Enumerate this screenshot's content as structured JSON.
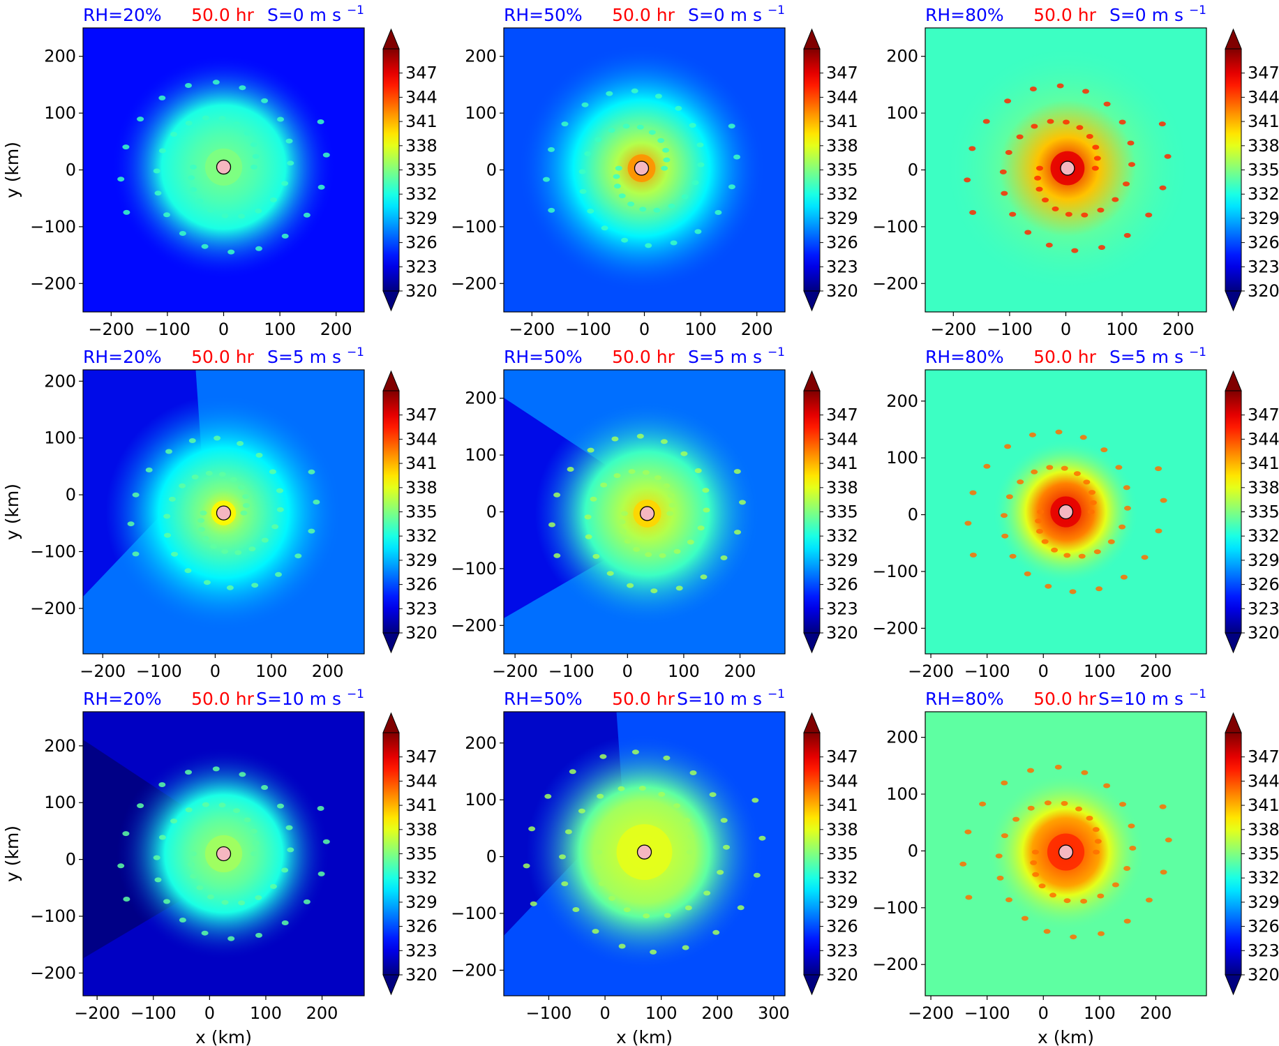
{
  "colors": {
    "title_left": "#0000ff",
    "title_center": "#ff0000",
    "title_right": "#0000ff",
    "center_marker": "#f5b7c0"
  },
  "colorbar": {
    "colormap": "jet",
    "extend": "both",
    "vmin": 320,
    "vmax": 350,
    "ticks": [
      "347",
      "344",
      "341",
      "338",
      "335",
      "332",
      "329",
      "326",
      "323",
      "320"
    ]
  },
  "chart_data": [
    {
      "type": "heatmap",
      "row": 0,
      "col": 0,
      "title_left": "RH=20%",
      "title_center": "50.0 hr",
      "title_right_base": "S=0 m s",
      "title_right_exp": "−1",
      "xlabel": "",
      "ylabel": "y (km)",
      "xticks": [
        "−200",
        "−100",
        "0",
        "100",
        "200"
      ],
      "yticks": [
        "200",
        "100",
        "0",
        "−100",
        "−200"
      ],
      "xlim": [
        -250,
        250
      ],
      "ylim": [
        -250,
        250
      ],
      "center": [
        0,
        5
      ],
      "field": {
        "bg": 324,
        "core": 335,
        "core_r": 60,
        "band": 332,
        "band_r": 200,
        "cells": 333,
        "wedge": null
      }
    },
    {
      "type": "heatmap",
      "row": 0,
      "col": 1,
      "title_left": "RH=50%",
      "title_center": "50.0 hr",
      "title_right_base": "S=0 m s",
      "title_right_exp": "−1",
      "xlabel": "",
      "ylabel": "",
      "xticks": [
        "−200",
        "−100",
        "0",
        "100",
        "200"
      ],
      "yticks": [
        "200",
        "100",
        "0",
        "−100",
        "−200"
      ],
      "xlim": [
        -250,
        250
      ],
      "ylim": [
        -250,
        250
      ],
      "center": [
        -5,
        3
      ],
      "field": {
        "bg": 326,
        "core": 342,
        "core_r": 45,
        "band": 331,
        "band_r": 220,
        "cells": 333,
        "wedge": null
      }
    },
    {
      "type": "heatmap",
      "row": 0,
      "col": 2,
      "title_left": "RH=80%",
      "title_center": "50.0 hr",
      "title_right_base": "S=0 m s",
      "title_right_exp": "−1",
      "xlabel": "",
      "ylabel": "",
      "xticks": [
        "−200",
        "−100",
        "0",
        "100",
        "200"
      ],
      "yticks": [
        "200",
        "100",
        "0",
        "−100",
        "−200"
      ],
      "xlim": [
        -250,
        250
      ],
      "ylim": [
        -250,
        250
      ],
      "center": [
        3,
        3
      ],
      "field": {
        "bg": 333,
        "core": 347,
        "core_r": 55,
        "band": 334,
        "band_r": 220,
        "cells": 345,
        "wedge": null
      }
    },
    {
      "type": "heatmap",
      "row": 1,
      "col": 0,
      "title_left": "RH=20%",
      "title_center": "50.0 hr",
      "title_right_base": "S=5 m s",
      "title_right_exp": "−1",
      "xlabel": "",
      "ylabel": "y (km)",
      "xticks": [
        "−200",
        "−100",
        "0",
        "100",
        "200"
      ],
      "yticks": [
        "200",
        "100",
        "0",
        "−100",
        "−200"
      ],
      "xlim": [
        -235,
        265
      ],
      "ylim": [
        -280,
        220
      ],
      "center": [
        15,
        -32
      ],
      "field": {
        "bg": 327,
        "core": 339,
        "core_r": 40,
        "band": 331,
        "band_r": 210,
        "cells": 334,
        "wedge": "nw"
      }
    },
    {
      "type": "heatmap",
      "row": 1,
      "col": 1,
      "title_left": "RH=50%",
      "title_center": "50.0 hr",
      "title_right_base": "S=5 m s",
      "title_right_exp": "−1",
      "xlabel": "",
      "ylabel": "",
      "xticks": [
        "−200",
        "−100",
        "0",
        "100",
        "200"
      ],
      "yticks": [
        "200",
        "100",
        "0",
        "−100",
        "−200"
      ],
      "xlim": [
        -220,
        280
      ],
      "ylim": [
        -250,
        250
      ],
      "center": [
        35,
        -3
      ],
      "field": {
        "bg": 327,
        "core": 340,
        "core_r": 45,
        "band": 333,
        "band_r": 200,
        "cells": 336,
        "wedge": "w"
      }
    },
    {
      "type": "heatmap",
      "row": 1,
      "col": 2,
      "title_left": "RH=80%",
      "title_center": "50.0 hr",
      "title_right_base": "S=5 m s",
      "title_right_exp": "−1",
      "xlabel": "",
      "ylabel": "",
      "xticks": [
        "−200",
        "−100",
        "0",
        "100",
        "200"
      ],
      "yticks": [
        "200",
        "100",
        "0",
        "−100",
        "−200"
      ],
      "xlim": [
        -210,
        290
      ],
      "ylim": [
        -245,
        255
      ],
      "center": [
        40,
        5
      ],
      "field": {
        "bg": 333,
        "core": 347,
        "core_r": 50,
        "band": 338,
        "band_r": 130,
        "cells": 343,
        "wedge": null
      }
    },
    {
      "type": "heatmap",
      "row": 2,
      "col": 0,
      "title_left": "RH=20%",
      "title_center": "50.0 hr",
      "title_right_base": "S=10 m s",
      "title_right_exp": "−1",
      "xlabel": "x (km)",
      "ylabel": "y (km)",
      "xticks": [
        "−200",
        "−100",
        "0",
        "100",
        "200"
      ],
      "yticks": [
        "200",
        "100",
        "0",
        "−100",
        "−200"
      ],
      "xlim": [
        -225,
        275
      ],
      "ylim": [
        -240,
        260
      ],
      "center": [
        25,
        10
      ],
      "field": {
        "bg": 322,
        "core": 336,
        "core_r": 60,
        "band": 332,
        "band_r": 190,
        "cells": 334,
        "wedge": "w"
      }
    },
    {
      "type": "heatmap",
      "row": 2,
      "col": 1,
      "title_left": "RH=50%",
      "title_center": "50.0 hr",
      "title_right_base": "S=10 m s",
      "title_right_exp": "−1",
      "xlabel": "x (km)",
      "ylabel": "",
      "xticks": [
        "−100",
        "0",
        "100",
        "200",
        "300"
      ],
      "yticks": [
        "200",
        "100",
        "0",
        "−100",
        "−200"
      ],
      "xlim": [
        -180,
        320
      ],
      "ylim": [
        -245,
        255
      ],
      "center": [
        70,
        8
      ],
      "field": {
        "bg": 326,
        "core": 338,
        "core_r": 90,
        "band": 334,
        "band_r": 210,
        "cells": 336,
        "wedge": "nw"
      }
    },
    {
      "type": "heatmap",
      "row": 2,
      "col": 2,
      "title_left": "RH=80%",
      "title_center": "50.0 hr",
      "title_right_base": "S=10 m s",
      "title_right_exp": "−1",
      "xlabel": "x (km)",
      "ylabel": "",
      "xticks": [
        "−200",
        "−100",
        "0",
        "100",
        "200"
      ],
      "yticks": [
        "200",
        "100",
        "0",
        "−100",
        "−200"
      ],
      "xlim": [
        -210,
        290
      ],
      "ylim": [
        -255,
        245
      ],
      "center": [
        40,
        -2
      ],
      "field": {
        "bg": 334,
        "core": 345,
        "core_r": 60,
        "band": 338,
        "band_r": 140,
        "cells": 343,
        "wedge": null
      }
    }
  ]
}
